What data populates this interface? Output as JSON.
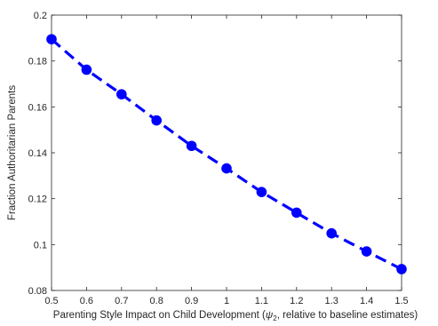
{
  "chart_data": {
    "type": "line",
    "title": "",
    "xlabel_prefix": "Parenting Style Impact on Child Development (",
    "xlabel_symbol": "ψ",
    "xlabel_subscript": "2",
    "xlabel_suffix": ", relative to baseline estimates)",
    "ylabel": "Fraction Authoritarian Parents",
    "xlim": [
      0.5,
      1.5
    ],
    "ylim": [
      0.08,
      0.2
    ],
    "xticks": [
      "0.5",
      "0.6",
      "0.7",
      "0.8",
      "0.9",
      "1",
      "1.1",
      "1.2",
      "1.3",
      "1.4",
      "1.5"
    ],
    "yticks": [
      "0.08",
      "0.1",
      "0.12",
      "0.14",
      "0.16",
      "0.18",
      "0.2"
    ],
    "grid": false,
    "line_color": "#0000ff",
    "line_style": "dashed",
    "marker": "circle",
    "series": [
      {
        "x": [
          0.5,
          0.6,
          0.7,
          0.8,
          0.9,
          1.0,
          1.1,
          1.2,
          1.3,
          1.4,
          1.5
        ],
        "values": [
          0.1895,
          0.1762,
          0.1655,
          0.1541,
          0.143,
          0.1332,
          0.1229,
          0.1139,
          0.1049,
          0.097,
          0.0893
        ]
      }
    ]
  }
}
